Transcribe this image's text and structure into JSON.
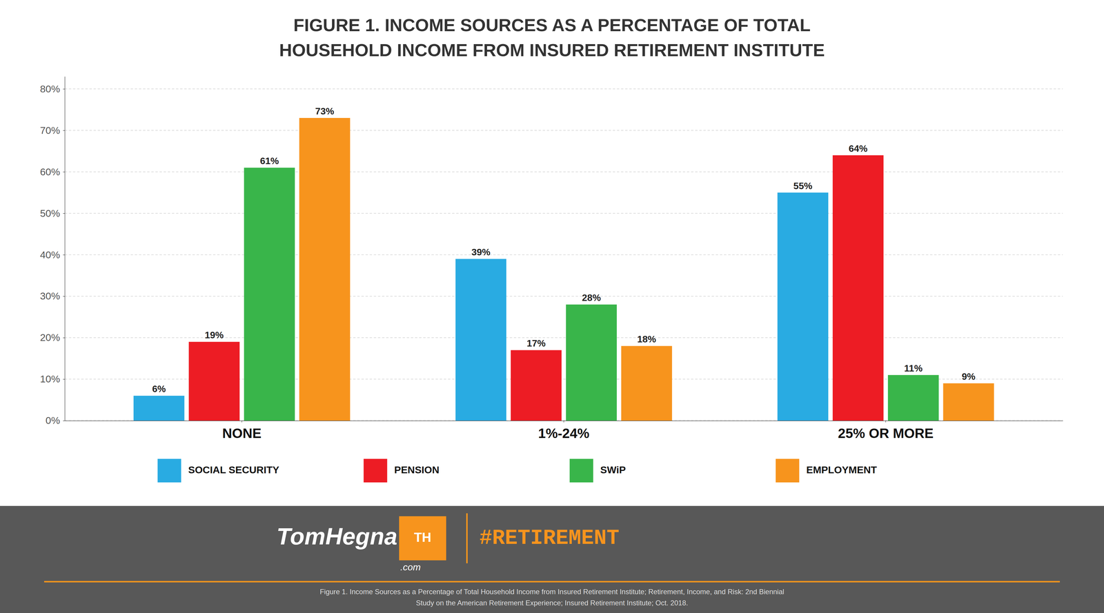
{
  "chart_data": {
    "type": "bar",
    "title": "FIGURE 1. INCOME SOURCES AS A PERCENTAGE OF TOTAL",
    "subtitle": "HOUSEHOLD INCOME FROM INSURED RETIREMENT INSTITUTE",
    "categories": [
      "NONE",
      "1%-24%",
      "25% OR MORE"
    ],
    "series": [
      {
        "name": "SOCIAL SECURITY",
        "color": "#29ABE2",
        "values": [
          6,
          39,
          55
        ],
        "value_labels": [
          "6%",
          "39%",
          "55%"
        ]
      },
      {
        "name": "PENSION",
        "color": "#ED1C24",
        "values": [
          19,
          17,
          64
        ],
        "value_labels": [
          "19%",
          "17%",
          "64%"
        ]
      },
      {
        "name": "SWiP",
        "color": "#39B54A",
        "values": [
          61,
          28,
          11
        ],
        "value_labels": [
          "61%",
          "28%",
          "11%"
        ]
      },
      {
        "name": "EMPLOYMENT",
        "color": "#F7941D",
        "values": [
          73,
          18,
          9
        ],
        "value_labels": [
          "73%",
          "18%",
          "9%"
        ]
      }
    ],
    "ylim": [
      0,
      83
    ],
    "yticks": [
      {
        "value": 0,
        "label": "0%"
      },
      {
        "value": 10,
        "label": "10%"
      },
      {
        "value": 20,
        "label": "20%"
      },
      {
        "value": 30,
        "label": "30%"
      },
      {
        "value": 40,
        "label": "40%"
      },
      {
        "value": 50,
        "label": "50%"
      },
      {
        "value": 60,
        "label": "60%"
      },
      {
        "value": 70,
        "label": "70%"
      },
      {
        "value": 80,
        "label": "80%"
      }
    ],
    "grid": true,
    "legend": "bottom",
    "data_labels": true,
    "annotations": [
      "TomHegna",
      "TH",
      ".com",
      "#RETIREMENT",
      "Figure 1. Income Sources as a Percentage of Total Household Income from Insured Retirement Institute; Retirement, Income, and Risk: 2nd Biennial",
      "Study on the American Retirement Experience; Insured Retirement Institute; Oct. 2018."
    ]
  }
}
